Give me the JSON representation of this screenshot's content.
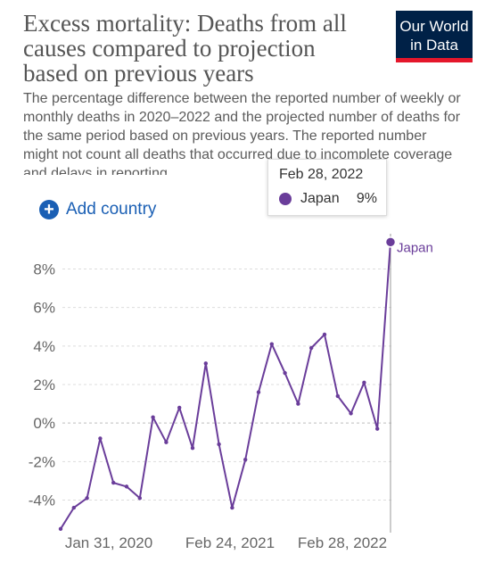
{
  "header": {
    "title": "Excess mortality: Deaths from all\ncauses compared to projection\nbased on previous years",
    "subtitle": "The percentage difference between the reported number of weekly or monthly deaths in 2020–2022 and the projected number of deaths for the same period based on previous years. The reported number might not count all deaths that occurred due to incomplete coverage and delays in reporting.",
    "logo_text": "Our World\nin Data"
  },
  "controls": {
    "add_country_label": "Add country",
    "add_icon": "plus-circle-icon"
  },
  "tooltip": {
    "date": "Feb 28, 2022",
    "country": "Japan",
    "value": "9%"
  },
  "colors": {
    "series": "#6a3d9a",
    "accent": "#1a5fb4",
    "logo_bg": "#002147",
    "logo_stripe": "#e4172b"
  },
  "chart_data": {
    "type": "line",
    "title": "Excess mortality: Deaths from all causes compared to projection based on previous years",
    "xlabel": "",
    "ylabel": "",
    "ylim": [
      -5.6,
      9.6
    ],
    "yticks": [
      -4,
      -2,
      0,
      2,
      4,
      6,
      8
    ],
    "ytick_labels": [
      "-4%",
      "-2%",
      "0%",
      "2%",
      "4%",
      "6%",
      "8%"
    ],
    "xticks": [
      "Jan 31, 2020",
      "Feb 24, 2021",
      "Feb 28, 2022"
    ],
    "grid": "horizontal dashed",
    "series": [
      {
        "name": "Japan",
        "x": [
          "2020-01-31",
          "2020-02-29",
          "2020-03-31",
          "2020-04-30",
          "2020-05-31",
          "2020-06-30",
          "2020-07-31",
          "2020-08-31",
          "2020-09-30",
          "2020-10-31",
          "2020-11-30",
          "2020-12-31",
          "2021-01-31",
          "2021-02-28",
          "2021-03-31",
          "2021-04-30",
          "2021-05-31",
          "2021-06-30",
          "2021-07-31",
          "2021-08-31",
          "2021-09-30",
          "2021-10-31",
          "2021-11-30",
          "2021-12-31",
          "2022-01-31",
          "2022-02-28"
        ],
        "values": [
          -5.5,
          -4.4,
          -3.9,
          -0.8,
          -3.1,
          -3.3,
          -3.9,
          0.3,
          -1.0,
          0.8,
          -1.3,
          3.1,
          -1.1,
          -4.4,
          -1.9,
          1.6,
          4.1,
          2.6,
          1.0,
          3.9,
          4.6,
          1.4,
          0.5,
          2.1,
          -0.3,
          9.4
        ]
      }
    ]
  }
}
